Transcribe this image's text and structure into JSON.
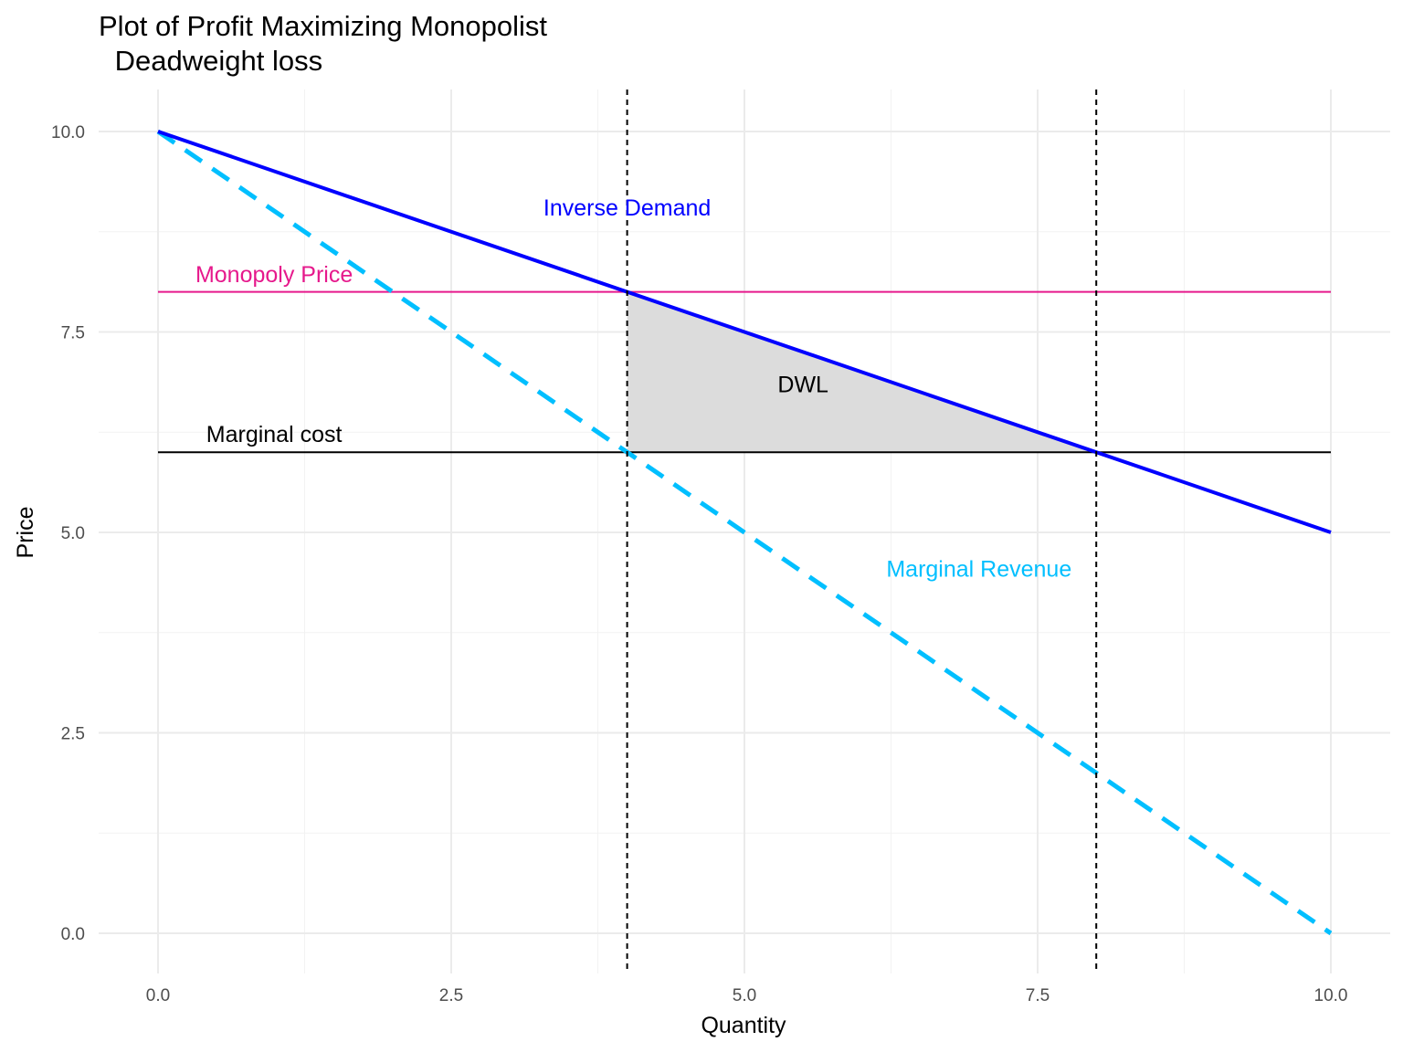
{
  "chart_data": {
    "type": "line",
    "title": "Plot of Profit Maximizing Monopolist",
    "subtitle": " Deadweight loss",
    "xlabel": "Quantity",
    "ylabel": "Price",
    "xlim": [
      0,
      10
    ],
    "ylim": [
      0,
      10
    ],
    "x_ticks": [
      0,
      2.5,
      5,
      7.5,
      10
    ],
    "x_tick_labels": [
      "0.0",
      "2.5",
      "5.0",
      "7.5",
      "10.0"
    ],
    "y_ticks": [
      0,
      2.5,
      5,
      7.5,
      10
    ],
    "y_tick_labels": [
      "0.0",
      "2.5",
      "5.0",
      "7.5",
      "10.0"
    ],
    "grid": true,
    "series": [
      {
        "key": "demand",
        "x": [
          0,
          10
        ],
        "y": [
          10,
          5
        ],
        "color": "#0000ff",
        "dash": "solid"
      },
      {
        "key": "mr",
        "x": [
          0,
          10
        ],
        "y": [
          10,
          0
        ],
        "color": "#00bfff",
        "dash": "dashed"
      },
      {
        "key": "mc",
        "x": [
          0,
          10
        ],
        "y": [
          6,
          6
        ],
        "color": "#000000",
        "dash": "solid"
      },
      {
        "key": "price",
        "x": [
          0,
          10
        ],
        "y": [
          8,
          8
        ],
        "color": "#e6198c",
        "dash": "solid"
      }
    ],
    "vlines": [
      {
        "x": 4,
        "color": "#000000",
        "dash": "dotted"
      },
      {
        "x": 8,
        "color": "#000000",
        "dash": "dotted"
      }
    ],
    "shaded_area": {
      "label": "DWL",
      "x": [
        4,
        8,
        4
      ],
      "y": [
        8,
        6,
        6
      ],
      "color": "#dcdcdc"
    },
    "annotations": [
      {
        "text": "Inverse Demand",
        "x": 4,
        "y": 8.95,
        "color": "#0000ff"
      },
      {
        "text": "Monopoly Price",
        "x": 0.99,
        "y": 8.12,
        "color": "#e6198c"
      },
      {
        "text": "Marginal cost",
        "x": 0.99,
        "y": 6.13,
        "color": "#000000"
      },
      {
        "text": "DWL",
        "x": 5.5,
        "y": 6.75,
        "color": "#000000"
      },
      {
        "text": "Marginal Revenue",
        "x": 7,
        "y": 4.45,
        "color": "#00bfff"
      }
    ]
  }
}
